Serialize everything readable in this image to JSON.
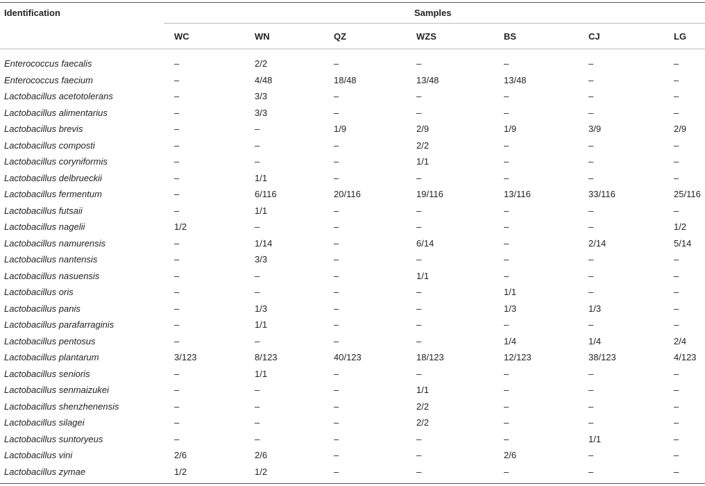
{
  "table": {
    "identification_header": "Identification",
    "samples_header": "Samples",
    "columns": [
      "WC",
      "WN",
      "QZ",
      "WZS",
      "BS",
      "CJ",
      "LG"
    ],
    "rows": [
      {
        "species": "Enterococcus faecalis",
        "values": [
          "–",
          "2/2",
          "–",
          "–",
          "–",
          "–",
          "–"
        ]
      },
      {
        "species": "Enterococcus faecium",
        "values": [
          "–",
          "4/48",
          "18/48",
          "13/48",
          "13/48",
          "–",
          "–"
        ]
      },
      {
        "species": "Lactobacillus acetotolerans",
        "values": [
          "–",
          "3/3",
          "–",
          "–",
          "–",
          "–",
          "–"
        ]
      },
      {
        "species": "Lactobacillus alimentarius",
        "values": [
          "–",
          "3/3",
          "–",
          "–",
          "–",
          "–",
          "–"
        ]
      },
      {
        "species": "Lactobacillus brevis",
        "values": [
          "–",
          "–",
          "1/9",
          "2/9",
          "1/9",
          "3/9",
          "2/9"
        ]
      },
      {
        "species": "Lactobacillus composti",
        "values": [
          "–",
          "–",
          "–",
          "2/2",
          "–",
          "–",
          "–"
        ]
      },
      {
        "species": "Lactobacillus coryniformis",
        "values": [
          "–",
          "–",
          "–",
          "1/1",
          "–",
          "–",
          "–"
        ]
      },
      {
        "species": "Lactobacillus delbrueckii",
        "values": [
          "–",
          "1/1",
          "–",
          "–",
          "–",
          "–",
          "–"
        ]
      },
      {
        "species": "Lactobacillus fermentum",
        "values": [
          "–",
          "6/116",
          "20/116",
          "19/116",
          "13/116",
          "33/116",
          "25/116"
        ]
      },
      {
        "species": "Lactobacillus futsaii",
        "values": [
          "–",
          "1/1",
          "–",
          "–",
          "–",
          "–",
          "–"
        ]
      },
      {
        "species": "Lactobacillus nagelii",
        "values": [
          "1/2",
          "–",
          "–",
          "–",
          "–",
          "–",
          "1/2"
        ]
      },
      {
        "species": "Lactobacillus namurensis",
        "values": [
          "–",
          "1/14",
          "–",
          "6/14",
          "–",
          "2/14",
          "5/14"
        ]
      },
      {
        "species": "Lactobacillus nantensis",
        "values": [
          "–",
          "3/3",
          "–",
          "–",
          "–",
          "–",
          "–"
        ]
      },
      {
        "species": "Lactobacillus nasuensis",
        "values": [
          "–",
          "–",
          "–",
          "1/1",
          "–",
          "–",
          "–"
        ]
      },
      {
        "species": "Lactobacillus oris",
        "values": [
          "–",
          "–",
          "–",
          "–",
          "1/1",
          "–",
          "–"
        ]
      },
      {
        "species": "Lactobacillus panis",
        "values": [
          "–",
          "1/3",
          "–",
          "–",
          "1/3",
          "1/3",
          "–"
        ]
      },
      {
        "species": "Lactobacillus parafarraginis",
        "values": [
          "–",
          "1/1",
          "–",
          "–",
          "–",
          "–",
          "–"
        ]
      },
      {
        "species": "Lactobacillus pentosus",
        "values": [
          "–",
          "–",
          "–",
          "–",
          "1/4",
          "1/4",
          "2/4"
        ]
      },
      {
        "species": "Lactobacillus plantarum",
        "values": [
          "3/123",
          "8/123",
          "40/123",
          "18/123",
          "12/123",
          "38/123",
          "4/123"
        ]
      },
      {
        "species": "Lactobacillus senioris",
        "values": [
          "–",
          "1/1",
          "–",
          "–",
          "–",
          "–",
          "–"
        ]
      },
      {
        "species": "Lactobacillus senmaizukei",
        "values": [
          "–",
          "–",
          "–",
          "1/1",
          "–",
          "–",
          "–"
        ]
      },
      {
        "species": "Lactobacillus shenzhenensis",
        "values": [
          "–",
          "–",
          "–",
          "2/2",
          "–",
          "–",
          "–"
        ]
      },
      {
        "species": "Lactobacillus silagei",
        "values": [
          "–",
          "–",
          "–",
          "2/2",
          "–",
          "–",
          "–"
        ]
      },
      {
        "species": "Lactobacillus suntoryeus",
        "values": [
          "–",
          "–",
          "–",
          "–",
          "–",
          "1/1",
          "–"
        ]
      },
      {
        "species": "Lactobacillus vini",
        "values": [
          "2/6",
          "2/6",
          "–",
          "–",
          "2/6",
          "–",
          "–"
        ]
      },
      {
        "species": "Lactobacillus zymae",
        "values": [
          "1/2",
          "1/2",
          "–",
          "–",
          "–",
          "–",
          "–"
        ]
      }
    ]
  }
}
